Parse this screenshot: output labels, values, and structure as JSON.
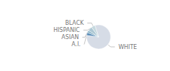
{
  "chart_data": {
    "type": "pie",
    "categories": [
      "WHITE",
      "A.I.",
      "ASIAN",
      "HISPANIC",
      "BLACK"
    ],
    "values": [
      82,
      4,
      3,
      6,
      5
    ],
    "colors": [
      "#d6dce6",
      "#5b8db8",
      "#8ab4c8",
      "#adc8d4",
      "#c5d8de"
    ]
  }
}
